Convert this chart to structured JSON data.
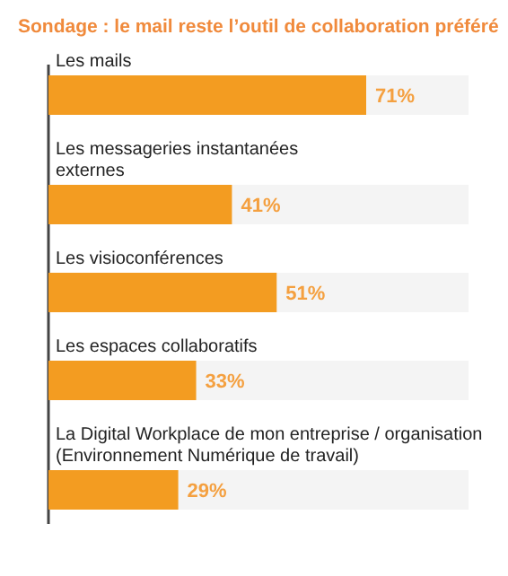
{
  "chart_data": {
    "type": "bar",
    "orientation": "horizontal",
    "title": "Sondage : le mail reste l’outil de collaboration préféré",
    "categories": [
      "Les mails",
      "Les messageries instantanées\nexternes",
      "Les visioconférences",
      "Les espaces collaboratifs",
      "La Digital Workplace de mon entreprise / organisation\n(Environnement Numérique de travail)"
    ],
    "values": [
      71,
      41,
      51,
      33,
      29
    ],
    "value_labels": [
      "71%",
      "41%",
      "51%",
      "33%",
      "29%"
    ],
    "color": "#f39c21"
  }
}
